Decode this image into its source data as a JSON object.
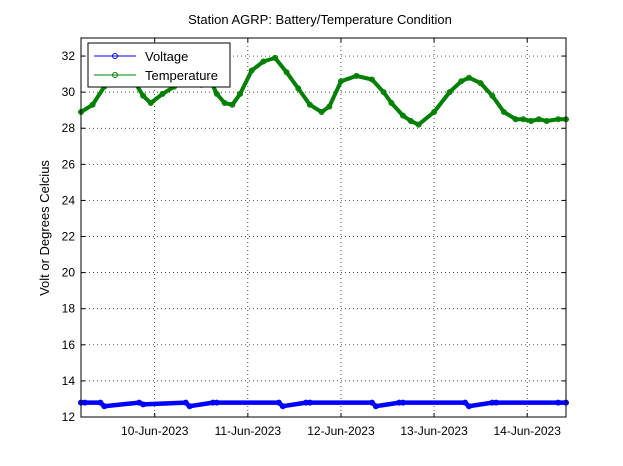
{
  "chart_data": {
    "type": "line",
    "title": "Station AGRP: Battery/Temperature Condition",
    "xlabel": "",
    "ylabel": "Volt or Degrees Celcius",
    "x_ticks": [
      "10-Jun-2023",
      "11-Jun-2023",
      "12-Jun-2023",
      "13-Jun-2023",
      "14-Jun-2023"
    ],
    "xlim": [
      "2023-06-09 05:00",
      "2023-06-14 10:00"
    ],
    "ylim": [
      12,
      33
    ],
    "y_ticks": [
      14,
      16,
      18,
      20,
      22,
      24,
      26,
      28,
      30,
      32
    ],
    "grid": true,
    "legend_position": "top-left",
    "series": [
      {
        "name": "Voltage",
        "color": "#0000ff",
        "x": [
          "2023-06-09 05:00",
          "2023-06-09 06:00",
          "2023-06-09 10:00",
          "2023-06-09 11:00",
          "2023-06-09 20:00",
          "2023-06-09 21:00",
          "2023-06-10 08:00",
          "2023-06-10 09:00",
          "2023-06-10 15:00",
          "2023-06-10 16:00",
          "2023-06-11 08:00",
          "2023-06-11 09:00",
          "2023-06-11 15:00",
          "2023-06-11 16:00",
          "2023-06-12 08:00",
          "2023-06-12 09:00",
          "2023-06-12 15:00",
          "2023-06-12 16:00",
          "2023-06-13 08:00",
          "2023-06-13 09:00",
          "2023-06-13 15:00",
          "2023-06-13 16:00",
          "2023-06-14 08:00",
          "2023-06-14 10:00"
        ],
        "values": [
          12.8,
          12.8,
          12.8,
          12.6,
          12.8,
          12.7,
          12.8,
          12.6,
          12.8,
          12.8,
          12.8,
          12.6,
          12.8,
          12.8,
          12.8,
          12.6,
          12.8,
          12.8,
          12.8,
          12.6,
          12.8,
          12.8,
          12.8,
          12.8
        ]
      },
      {
        "name": "Temperature",
        "color": "#008000",
        "x": [
          "2023-06-09 05:00",
          "2023-06-09 08:00",
          "2023-06-09 11:00",
          "2023-06-09 14:00",
          "2023-06-09 17:00",
          "2023-06-09 19:00",
          "2023-06-09 21:00",
          "2023-06-09 23:00",
          "2023-06-10 02:00",
          "2023-06-10 05:00",
          "2023-06-10 07:00",
          "2023-06-10 10:00",
          "2023-06-10 12:00",
          "2023-06-10 14:00",
          "2023-06-10 16:00",
          "2023-06-10 18:00",
          "2023-06-10 20:00",
          "2023-06-10 22:00",
          "2023-06-11 01:00",
          "2023-06-11 04:00",
          "2023-06-11 07:00",
          "2023-06-11 10:00",
          "2023-06-11 13:00",
          "2023-06-11 16:00",
          "2023-06-11 19:00",
          "2023-06-11 21:00",
          "2023-06-12 00:00",
          "2023-06-12 04:00",
          "2023-06-12 08:00",
          "2023-06-12 11:00",
          "2023-06-12 13:00",
          "2023-06-12 16:00",
          "2023-06-12 18:00",
          "2023-06-12 20:00",
          "2023-06-13 00:00",
          "2023-06-13 04:00",
          "2023-06-13 07:00",
          "2023-06-13 09:00",
          "2023-06-13 12:00",
          "2023-06-13 15:00",
          "2023-06-13 18:00",
          "2023-06-13 21:00",
          "2023-06-13 23:00",
          "2023-06-14 01:00",
          "2023-06-14 03:00",
          "2023-06-14 05:00",
          "2023-06-14 08:00",
          "2023-06-14 10:00"
        ],
        "values": [
          28.9,
          29.3,
          30.3,
          31.6,
          31.5,
          30.5,
          29.8,
          29.4,
          29.9,
          30.3,
          31.3,
          30.9,
          30.4,
          30.8,
          29.9,
          29.4,
          29.3,
          29.9,
          31.2,
          31.7,
          31.9,
          31.1,
          30.2,
          29.3,
          28.9,
          29.2,
          30.6,
          30.9,
          30.7,
          30.0,
          29.4,
          28.7,
          28.4,
          28.2,
          28.9,
          30.0,
          30.6,
          30.8,
          30.5,
          29.8,
          28.9,
          28.5,
          28.5,
          28.4,
          28.5,
          28.4,
          28.5,
          28.5
        ]
      }
    ]
  }
}
